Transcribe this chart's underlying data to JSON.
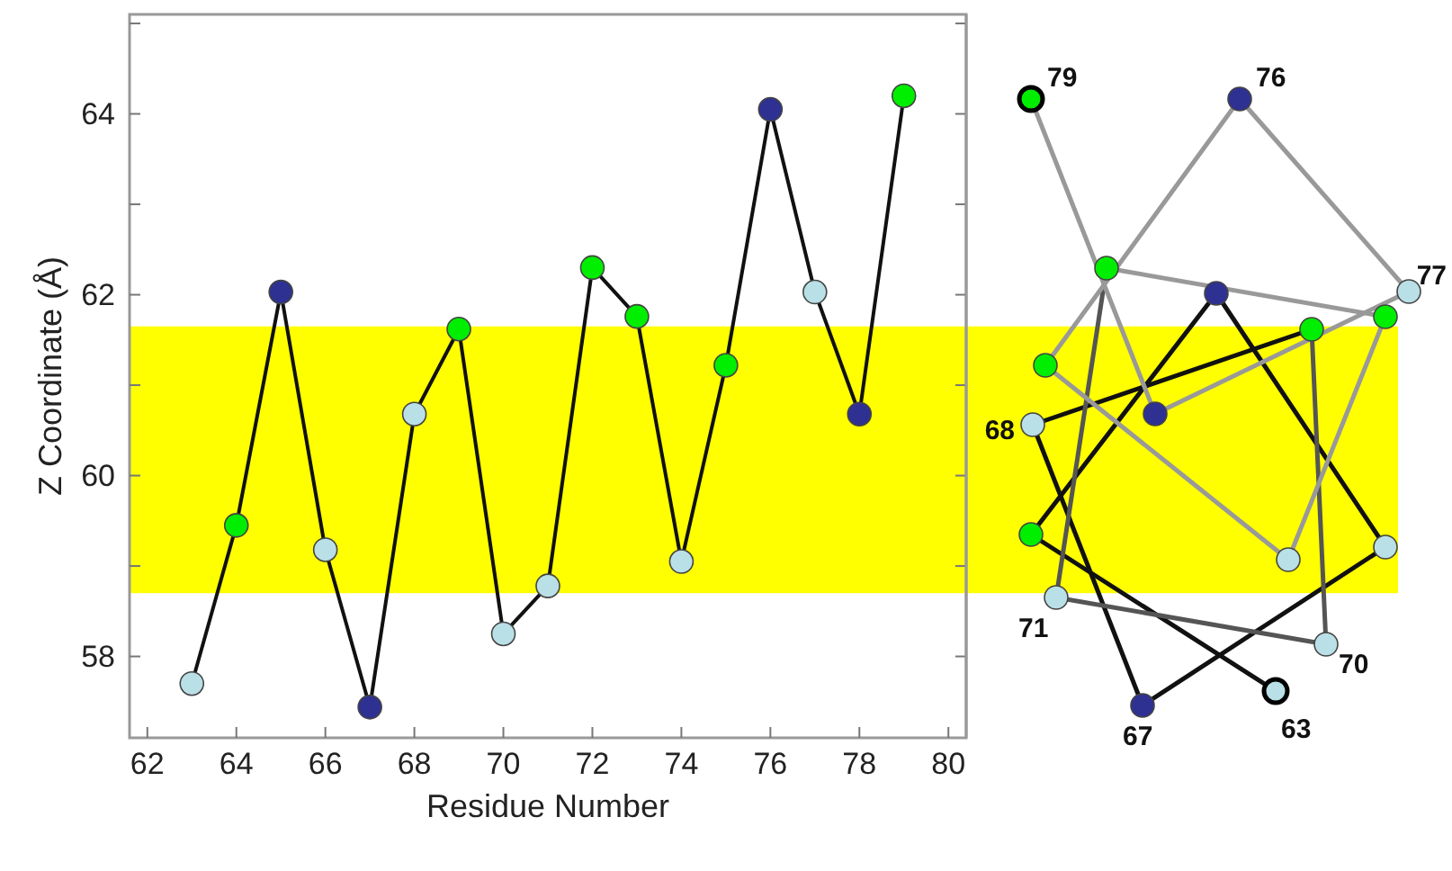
{
  "chart_data": [
    {
      "type": "line",
      "xlabel": "Residue Number",
      "ylabel": "Z Coordinate (Å)",
      "x": [
        63,
        64,
        65,
        66,
        67,
        68,
        69,
        70,
        71,
        72,
        73,
        74,
        75,
        76,
        77,
        78,
        79
      ],
      "series": [
        {
          "color": "#111111",
          "values": [
            57.7,
            59.45,
            62.03,
            59.18,
            57.44,
            60.68,
            61.62,
            58.25,
            58.78,
            62.3,
            61.76,
            59.05,
            61.22,
            64.05,
            62.03,
            60.68,
            64.2
          ],
          "colors": [
            "#b9e0e6",
            "#00ee00",
            "#2e3192",
            "#b9e0e6",
            "#2e3192",
            "#b9e0e6",
            "#00ee00",
            "#b9e0e6",
            "#b9e0e6",
            "#00ee00",
            "#00ee00",
            "#b9e0e6",
            "#00ee00",
            "#2e3192",
            "#b9e0e6",
            "#2e3192",
            "#00ee00"
          ]
        }
      ],
      "marker": "circle",
      "line_style": "solid",
      "bands": [
        {
          "axis": "y",
          "from": 58.7,
          "to": 61.65,
          "color": "#ffff00"
        }
      ],
      "xlim": [
        61.6,
        80.4
      ],
      "xticks": [
        62,
        64,
        66,
        68,
        70,
        72,
        74,
        76,
        78,
        80
      ],
      "ylim": [
        57.1,
        65.1
      ],
      "yticks": [
        {
          "value": 58,
          "label": "58"
        },
        {
          "value": 59,
          "label": null
        },
        {
          "value": 60,
          "label": "60"
        },
        {
          "value": 61,
          "label": null
        },
        {
          "value": 62,
          "label": "62"
        },
        {
          "value": 63,
          "label": null
        },
        {
          "value": 64,
          "label": "64"
        },
        {
          "value": 65,
          "label": null
        }
      ],
      "grid": false
    },
    {
      "type": "other",
      "annotations": [
        "79",
        "76",
        "77",
        "68",
        "71",
        "70",
        "67",
        "63"
      ]
    }
  ]
}
